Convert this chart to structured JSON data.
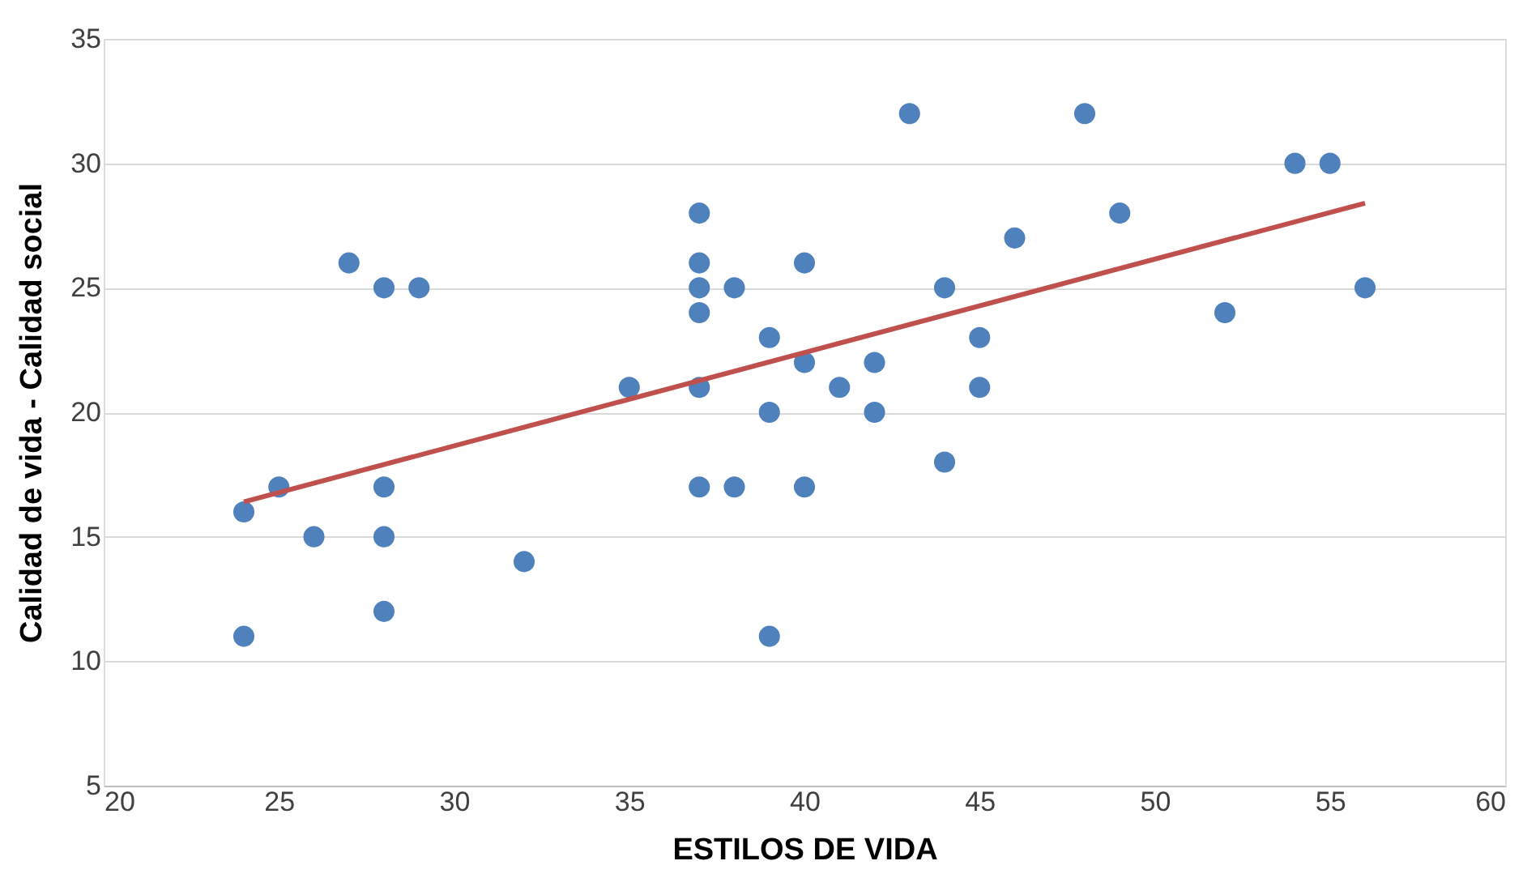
{
  "chart_data": {
    "type": "scatter",
    "xlabel": "ESTILOS DE VIDA",
    "ylabel": "Calidad de vida - Calidad social",
    "xlim": [
      20,
      60
    ],
    "xticks": [
      20,
      25,
      30,
      35,
      40,
      45,
      50,
      55,
      60
    ],
    "ylim": [
      5,
      35
    ],
    "yticks": [
      5,
      10,
      15,
      20,
      25,
      30,
      35
    ],
    "grid": "y",
    "series": [
      {
        "marker": "circle",
        "color": "#4f81bd",
        "x": [
          24,
          24,
          25,
          26,
          27,
          28,
          28,
          28,
          28,
          29,
          32,
          35,
          37,
          37,
          37,
          37,
          37,
          37,
          38,
          38,
          39,
          39,
          39,
          40,
          40,
          40,
          41,
          42,
          42,
          43,
          44,
          44,
          45,
          45,
          46,
          48,
          49,
          52,
          54,
          55,
          56
        ],
        "values": [
          16,
          11,
          17,
          15,
          26,
          25,
          17,
          15,
          12,
          25,
          14,
          21,
          28,
          26,
          25,
          24,
          21,
          17,
          25,
          17,
          23,
          20,
          11,
          26,
          22,
          17,
          21,
          22,
          20,
          32,
          25,
          18,
          23,
          21,
          27,
          32,
          28,
          24,
          30,
          30,
          25
        ]
      },
      {
        "type": "line",
        "color": "#c0504d",
        "x": [
          24,
          56
        ],
        "values": [
          16.4,
          28.4
        ]
      }
    ]
  }
}
